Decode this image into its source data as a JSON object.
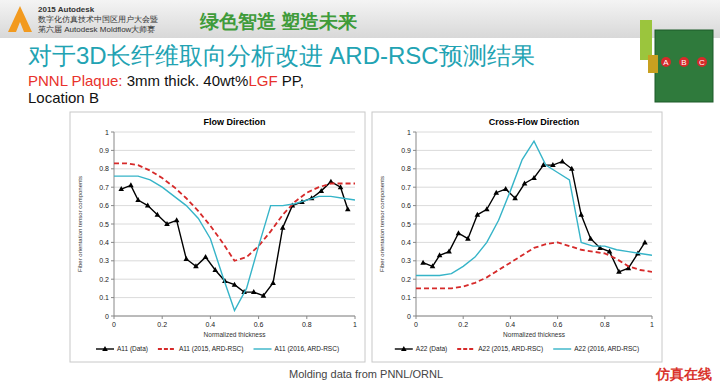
{
  "slide": {
    "header_lines": [
      "2015 Autodesk",
      "数字化仿真技术中国区用户大会暨",
      "第六届 Autodesk Moldflow大师赛"
    ],
    "slogan": "绿色智造  塑造未来",
    "title": "对于3D长纤维取向分析改进 ARD-RSC预测结果",
    "subtitle_lines": [
      [
        {
          "text": "PNNL Plaque: ",
          "color": "#e8322c"
        },
        {
          "text": "3mm thick. 40wt%",
          "color": "#111111"
        },
        {
          "text": "LGF",
          "color": "#e8322c"
        },
        {
          "text": " PP,",
          "color": "#111111"
        }
      ],
      [
        {
          "text": "Location B",
          "color": "#111111"
        }
      ]
    ],
    "plaque_labels": [
      "A",
      "B",
      "C"
    ],
    "footer": "Molding data from PNNL/ORNL",
    "watermark": "仿真在线"
  },
  "chart_data": [
    {
      "type": "line",
      "title": "Flow Direction",
      "x_label": "Normalized thickness",
      "y_label": "Fiber orientation tensor components",
      "xlim": [
        0,
        1
      ],
      "xticks": [
        0,
        0.2,
        0.4,
        0.6,
        0.8,
        1
      ],
      "ylim": [
        0,
        1
      ],
      "yticks": [
        0,
        0.1,
        0.2,
        0.3,
        0.4,
        0.5,
        0.6,
        0.7,
        0.8,
        0.9,
        1
      ],
      "grid": true,
      "legend": "bottom",
      "series": [
        {
          "name": "A11 (Data)",
          "color": "#000000",
          "marker": "triangle",
          "line_style": "solid",
          "x": [
            0.03,
            0.07,
            0.1,
            0.14,
            0.18,
            0.22,
            0.26,
            0.3,
            0.34,
            0.38,
            0.42,
            0.46,
            0.5,
            0.54,
            0.58,
            0.62,
            0.66,
            0.7,
            0.74,
            0.78,
            0.82,
            0.86,
            0.9,
            0.94,
            0.97
          ],
          "values": [
            0.69,
            0.71,
            0.63,
            0.6,
            0.55,
            0.5,
            0.52,
            0.31,
            0.27,
            0.32,
            0.25,
            0.19,
            0.17,
            0.13,
            0.13,
            0.11,
            0.18,
            0.48,
            0.6,
            0.62,
            0.64,
            0.68,
            0.73,
            0.7,
            0.58
          ]
        },
        {
          "name": "A11 (2015, ARD-RSC)",
          "color": "#d62a2a",
          "marker": "none",
          "line_style": "dashed",
          "x": [
            0,
            0.05,
            0.1,
            0.15,
            0.2,
            0.25,
            0.3,
            0.35,
            0.4,
            0.45,
            0.5,
            0.55,
            0.6,
            0.65,
            0.7,
            0.75,
            0.8,
            0.85,
            0.9,
            0.95,
            1
          ],
          "values": [
            0.83,
            0.83,
            0.82,
            0.79,
            0.75,
            0.7,
            0.64,
            0.57,
            0.49,
            0.4,
            0.3,
            0.32,
            0.38,
            0.46,
            0.55,
            0.62,
            0.67,
            0.7,
            0.72,
            0.72,
            0.72
          ]
        },
        {
          "name": "A11 (2016, ARD-RSC)",
          "color": "#36b4c8",
          "marker": "none",
          "line_style": "solid",
          "x": [
            0,
            0.05,
            0.1,
            0.15,
            0.2,
            0.25,
            0.3,
            0.35,
            0.4,
            0.45,
            0.5,
            0.55,
            0.6,
            0.65,
            0.7,
            0.75,
            0.8,
            0.85,
            0.9,
            0.95,
            1
          ],
          "values": [
            0.76,
            0.76,
            0.76,
            0.74,
            0.7,
            0.65,
            0.6,
            0.53,
            0.42,
            0.22,
            0.03,
            0.15,
            0.38,
            0.6,
            0.6,
            0.61,
            0.63,
            0.65,
            0.65,
            0.64,
            0.63
          ]
        }
      ]
    },
    {
      "type": "line",
      "title": "Cross-Flow Direction",
      "x_label": "Normalized thickness",
      "y_label": "Fiber orientation tensor components",
      "xlim": [
        0,
        1
      ],
      "xticks": [
        0,
        0.2,
        0.4,
        0.6,
        0.8,
        1
      ],
      "ylim": [
        0,
        1
      ],
      "yticks": [
        0,
        0.1,
        0.2,
        0.3,
        0.4,
        0.5,
        0.6,
        0.7,
        0.8,
        0.9,
        1
      ],
      "grid": true,
      "legend": "bottom",
      "series": [
        {
          "name": "A22 (Data)",
          "color": "#000000",
          "marker": "triangle",
          "line_style": "solid",
          "x": [
            0.03,
            0.07,
            0.1,
            0.14,
            0.18,
            0.22,
            0.26,
            0.3,
            0.34,
            0.38,
            0.42,
            0.46,
            0.5,
            0.54,
            0.58,
            0.62,
            0.66,
            0.7,
            0.74,
            0.78,
            0.82,
            0.86,
            0.9,
            0.94,
            0.97
          ],
          "values": [
            0.29,
            0.27,
            0.33,
            0.35,
            0.45,
            0.42,
            0.55,
            0.58,
            0.67,
            0.69,
            0.64,
            0.72,
            0.75,
            0.82,
            0.82,
            0.84,
            0.8,
            0.55,
            0.42,
            0.37,
            0.35,
            0.24,
            0.26,
            0.34,
            0.4
          ]
        },
        {
          "name": "A22 (2015, ARD-RSC)",
          "color": "#d62a2a",
          "marker": "none",
          "line_style": "dashed",
          "x": [
            0,
            0.05,
            0.1,
            0.15,
            0.2,
            0.25,
            0.3,
            0.35,
            0.4,
            0.45,
            0.5,
            0.55,
            0.6,
            0.65,
            0.7,
            0.75,
            0.8,
            0.85,
            0.9,
            0.95,
            1
          ],
          "values": [
            0.15,
            0.15,
            0.15,
            0.15,
            0.16,
            0.18,
            0.21,
            0.25,
            0.29,
            0.33,
            0.37,
            0.39,
            0.4,
            0.38,
            0.36,
            0.35,
            0.34,
            0.31,
            0.27,
            0.25,
            0.24
          ]
        },
        {
          "name": "A22 (2016, ARD-RSC)",
          "color": "#36b4c8",
          "marker": "none",
          "line_style": "solid",
          "x": [
            0,
            0.05,
            0.1,
            0.15,
            0.2,
            0.25,
            0.3,
            0.35,
            0.4,
            0.45,
            0.5,
            0.55,
            0.6,
            0.65,
            0.7,
            0.75,
            0.8,
            0.85,
            0.9,
            0.95,
            1
          ],
          "values": [
            0.22,
            0.22,
            0.22,
            0.23,
            0.27,
            0.32,
            0.4,
            0.52,
            0.68,
            0.85,
            0.95,
            0.82,
            0.78,
            0.74,
            0.4,
            0.38,
            0.38,
            0.36,
            0.35,
            0.34,
            0.33
          ]
        }
      ]
    }
  ]
}
